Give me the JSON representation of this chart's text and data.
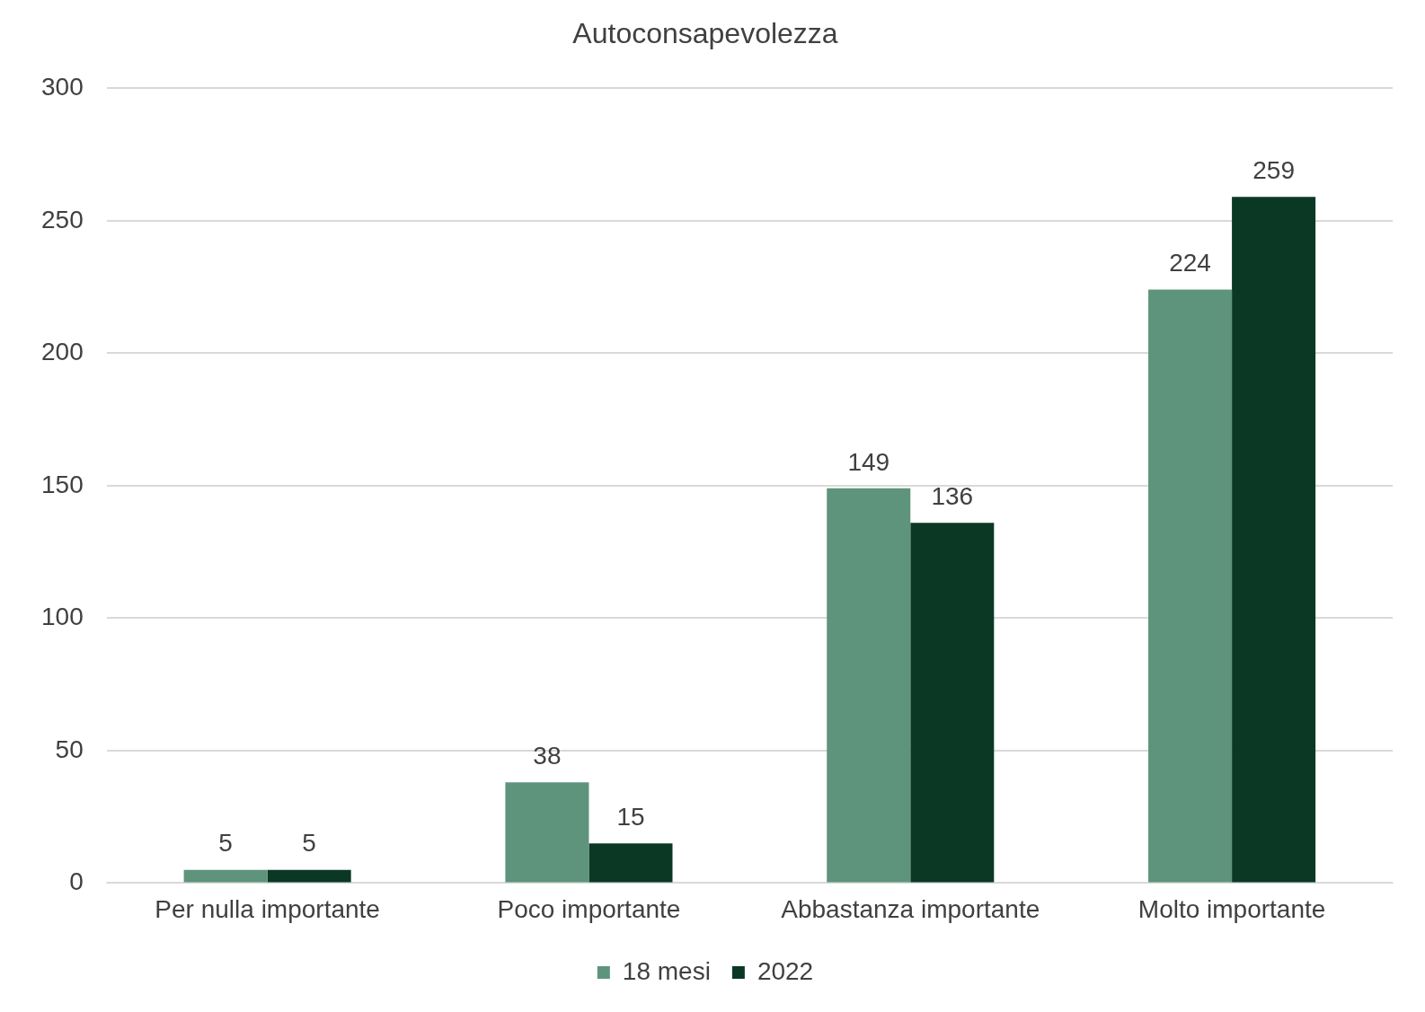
{
  "chart_data": {
    "type": "bar",
    "title": "Autoconsapevolezza",
    "categories": [
      "Per nulla importante",
      "Poco importante",
      "Abbastanza importante",
      "Molto importante"
    ],
    "series": [
      {
        "name": "18 mesi",
        "color": "#5e947b",
        "values": [
          5,
          38,
          149,
          224
        ]
      },
      {
        "name": "2022",
        "color": "#0b3824",
        "values": [
          5,
          15,
          136,
          259
        ]
      }
    ],
    "ylim": [
      0,
      300
    ],
    "yticks": [
      0,
      50,
      100,
      150,
      200,
      250,
      300
    ],
    "grid": "y",
    "legend": "bottom",
    "data_labels": true
  }
}
